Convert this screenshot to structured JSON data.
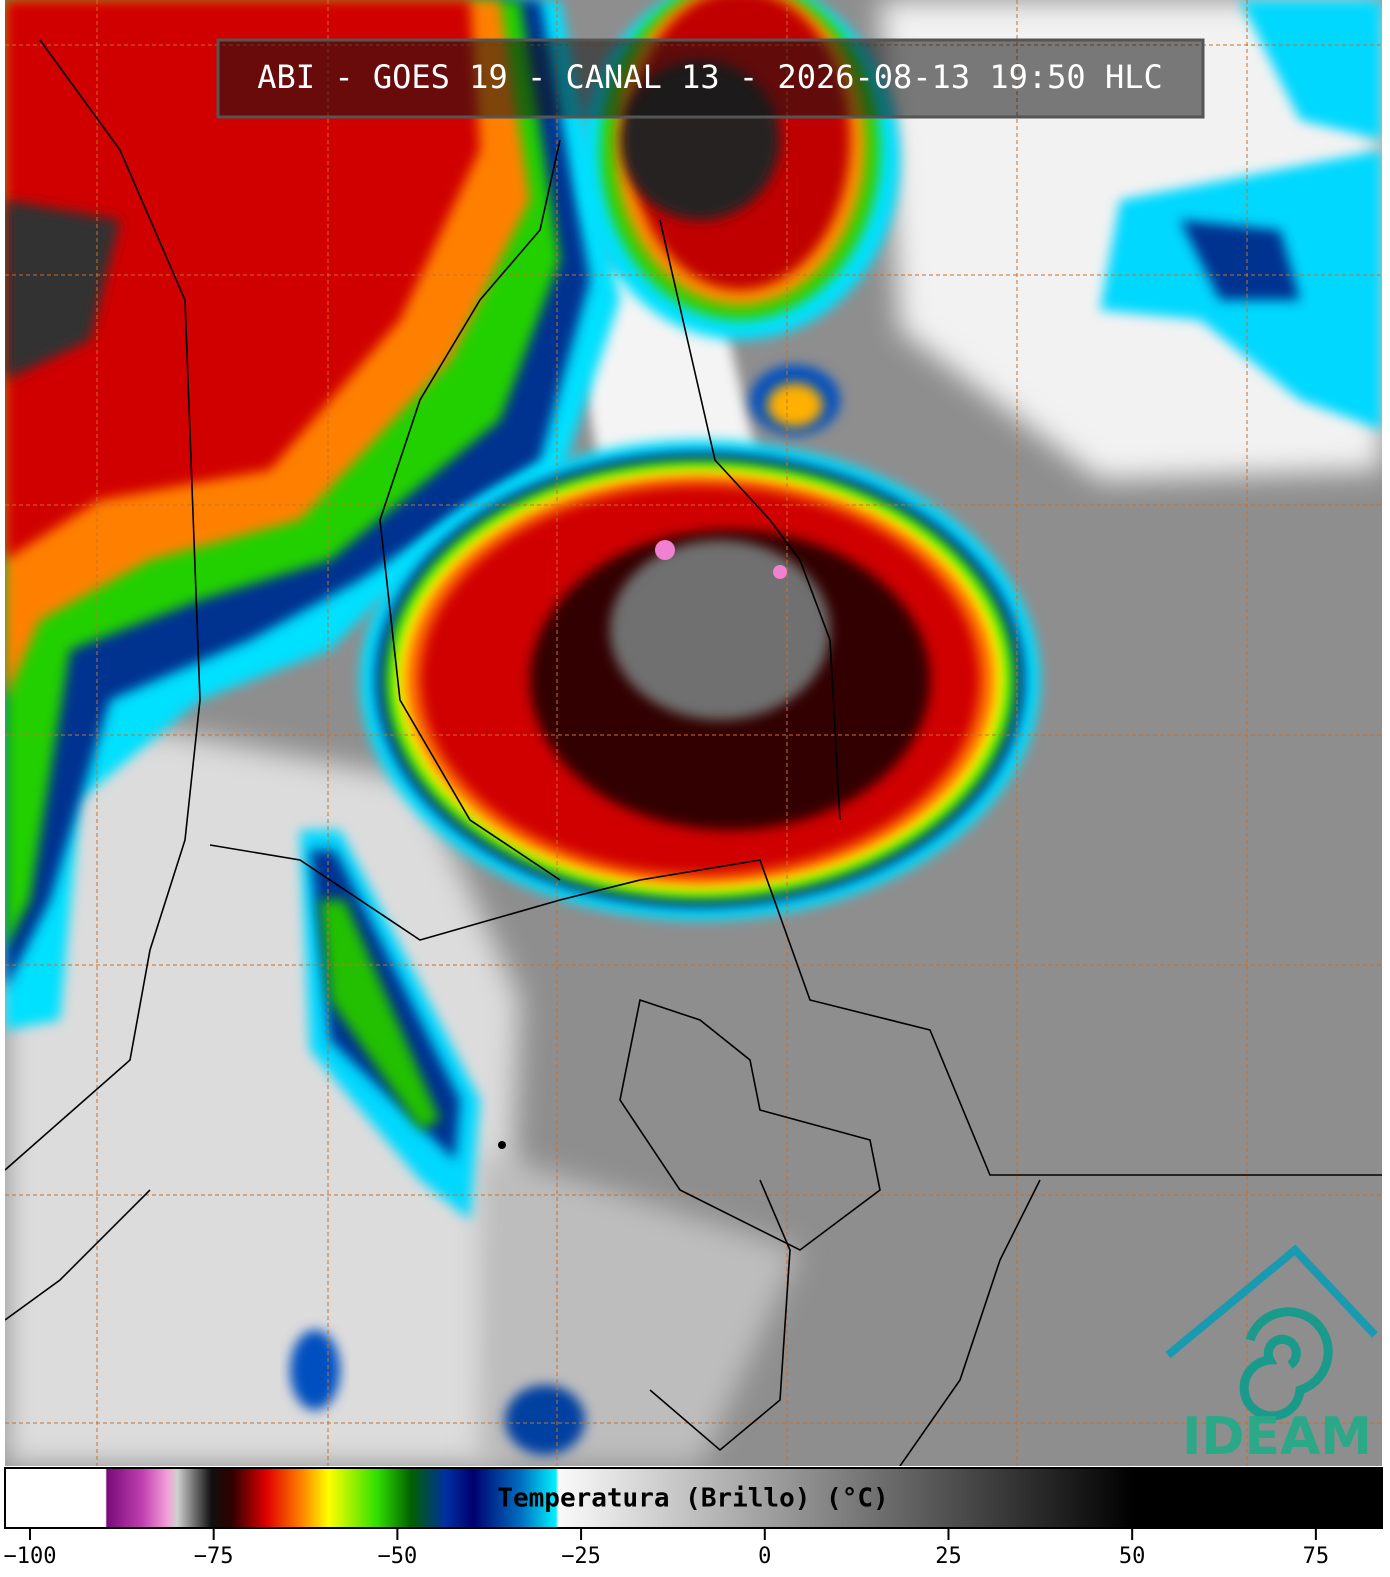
{
  "header": {
    "title": "ABI - GOES 19 - CANAL 13 - 2026-08-13 19:50 HLC"
  },
  "colorbar": {
    "label": "Temperatura (Brillo) (°C)",
    "xlim": [
      -103.4,
      84
    ],
    "ticks": [
      {
        "value": -100,
        "label": "−100"
      },
      {
        "value": -75,
        "label": "−75"
      },
      {
        "value": -50,
        "label": "−50"
      },
      {
        "value": -25,
        "label": "−25"
      },
      0,
      25,
      50,
      75
    ]
  },
  "logo": {
    "text": "IDEAM"
  }
}
